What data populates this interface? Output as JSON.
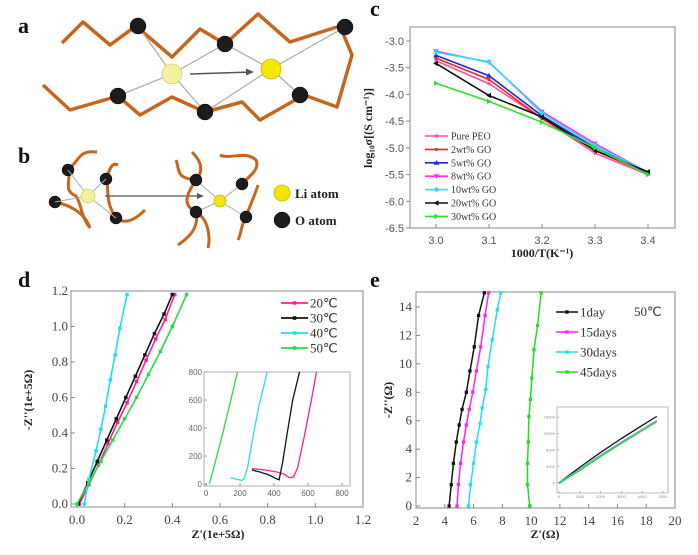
{
  "panels": {
    "a": {
      "label": "a"
    },
    "b": {
      "label": "b",
      "legend": [
        {
          "name": "Li atom",
          "color": "#f5e600"
        },
        {
          "name": "O atom",
          "color": "#1a1a1a"
        }
      ]
    },
    "c": {
      "label": "c"
    },
    "d": {
      "label": "d"
    },
    "e": {
      "label": "e"
    }
  },
  "colors": {
    "chain": "#c8651b",
    "li_faded": "#f4f0a0",
    "li": "#f5e600",
    "oxygen": "#1c1c1c",
    "frame": "#888888"
  },
  "chart_data": [
    {
      "id": "c",
      "type": "line",
      "title": "",
      "xlabel": "1000/T(K⁻¹)",
      "ylabel": "log₁₀σ[(S cm⁻¹)]",
      "xlim": [
        2.95,
        3.45
      ],
      "ylim": [
        -6.5,
        -2.7
      ],
      "xticks": [
        3.0,
        3.1,
        3.2,
        3.3,
        3.4
      ],
      "xtick_labels": [
        "3.0",
        "3.1",
        "3.2",
        "3.3",
        "3.4"
      ],
      "yticks": [
        -3.0,
        -3.5,
        -4.0,
        -4.5,
        -5.0,
        -5.5,
        -6.0,
        -6.5
      ],
      "ytick_labels": [
        "-3.0",
        "-3.5",
        "-4.0",
        "-4.5",
        "-5.0",
        "-5.5",
        "-6.0",
        "-6.5"
      ],
      "legend_position": "lower-left",
      "x": [
        3.0,
        3.1,
        3.2,
        3.3,
        3.4
      ],
      "series": [
        {
          "name": "Pure PEO",
          "color": "#ff4fa3",
          "marker": "square",
          "values": [
            -3.37,
            -3.8,
            -4.45,
            -5.1,
            -5.5
          ]
        },
        {
          "name": "2wt% GO",
          "color": "#ff2020",
          "marker": "circle",
          "values": [
            -3.32,
            -3.72,
            -4.45,
            -5.05,
            -5.48
          ]
        },
        {
          "name": "5wt% GO",
          "color": "#1a2bd9",
          "marker": "triangle-up",
          "values": [
            -3.27,
            -3.65,
            -4.4,
            -5.0,
            -5.47
          ]
        },
        {
          "name": "8wt% GO",
          "color": "#ff30ff",
          "marker": "triangle-down",
          "values": [
            -3.19,
            -3.4,
            -4.32,
            -4.92,
            -5.46
          ]
        },
        {
          "name": "10wt% GO",
          "color": "#20e0ff",
          "marker": "diamond",
          "values": [
            -3.21,
            -3.39,
            -4.35,
            -4.96,
            -5.46
          ]
        },
        {
          "name": "20wt% GO",
          "color": "#111111",
          "marker": "left",
          "values": [
            -3.42,
            -4.02,
            -4.42,
            -5.05,
            -5.45
          ]
        },
        {
          "name": "30wt% GO",
          "color": "#2ee02e",
          "marker": "right",
          "values": [
            -3.79,
            -4.13,
            -4.52,
            -5.0,
            -5.5
          ]
        }
      ]
    },
    {
      "id": "d",
      "type": "line",
      "title": "",
      "xlabel": "Z'(1e+5Ω)",
      "ylabel": "-Z''(1e+5Ω)",
      "xlim": [
        -0.02,
        1.2
      ],
      "ylim": [
        -0.01,
        1.2
      ],
      "xticks": [
        0.0,
        0.2,
        0.4,
        0.6,
        0.8,
        1.0,
        1.2
      ],
      "xtick_labels": [
        "0.0",
        "0.2",
        "0.4",
        "0.6",
        "0.8",
        "1.0",
        "1.2"
      ],
      "yticks": [
        0.0,
        0.2,
        0.4,
        0.6,
        0.8,
        1.0,
        1.2
      ],
      "ytick_labels": [
        "0.0",
        "0.2",
        "0.4",
        "0.6",
        "0.8",
        "1.0",
        "1.2"
      ],
      "legend_position": "top-right",
      "series": [
        {
          "name": "20℃",
          "color": "#ff1f8f",
          "x": [
            0.01,
            0.05,
            0.09,
            0.13,
            0.17,
            0.21,
            0.25,
            0.29,
            0.33,
            0.37,
            0.41
          ],
          "y": [
            0.0,
            0.11,
            0.22,
            0.34,
            0.46,
            0.57,
            0.69,
            0.81,
            0.93,
            1.04,
            1.18
          ]
        },
        {
          "name": "30℃",
          "color": "#111111",
          "x": [
            0.005,
            0.045,
            0.085,
            0.125,
            0.165,
            0.205,
            0.245,
            0.285,
            0.325,
            0.365,
            0.4
          ],
          "y": [
            0.0,
            0.12,
            0.24,
            0.36,
            0.48,
            0.6,
            0.72,
            0.84,
            0.96,
            1.07,
            1.18
          ]
        },
        {
          "name": "40℃",
          "color": "#1fe0f0",
          "x": [
            0.03,
            0.05,
            0.08,
            0.1,
            0.12,
            0.14,
            0.16,
            0.18,
            0.21
          ],
          "y": [
            0.0,
            0.14,
            0.3,
            0.42,
            0.55,
            0.7,
            0.84,
            0.99,
            1.18
          ]
        },
        {
          "name": "50℃",
          "color": "#22e040",
          "x": [
            0.0,
            0.05,
            0.1,
            0.15,
            0.2,
            0.25,
            0.3,
            0.35,
            0.4,
            0.46
          ],
          "y": [
            0.0,
            0.12,
            0.24,
            0.36,
            0.48,
            0.6,
            0.73,
            0.86,
            1.0,
            1.18
          ]
        }
      ],
      "inset": {
        "xlim": [
          0,
          800
        ],
        "ylim": [
          0,
          800
        ],
        "xticks": [
          0,
          200,
          400,
          600,
          800
        ],
        "xtick_labels": [
          "0",
          "200",
          "400",
          "600",
          "800"
        ],
        "yticks": [
          0,
          200,
          400,
          600,
          800
        ],
        "ytick_labels": [
          "0",
          "200",
          "400",
          "600",
          "800"
        ],
        "series": [
          {
            "name": "20℃",
            "color": "#ff1f8f",
            "x": [
              270,
              350,
              420,
              460,
              490,
              515,
              540,
              580,
              620,
              650
            ],
            "y": [
              110,
              100,
              85,
              70,
              45,
              50,
              120,
              350,
              600,
              800
            ]
          },
          {
            "name": "30℃",
            "color": "#111111",
            "x": [
              270,
              320,
              370,
              410,
              430,
              450,
              480,
              510,
              550
            ],
            "y": [
              100,
              85,
              65,
              40,
              30,
              150,
              380,
              600,
              800
            ]
          },
          {
            "name": "40℃",
            "color": "#1fe0f0",
            "x": [
              145,
              180,
              210,
              225,
              245,
              275,
              310,
              360
            ],
            "y": [
              45,
              35,
              25,
              40,
              120,
              330,
              550,
              800
            ]
          },
          {
            "name": "50℃",
            "color": "#22e040",
            "x": [
              20,
              40,
              70,
              100,
              130,
              160,
              185
            ],
            "y": [
              0,
              90,
              230,
              370,
              520,
              670,
              800
            ]
          }
        ]
      }
    },
    {
      "id": "e",
      "type": "line",
      "title": "",
      "annotation": "50℃",
      "xlabel": "Z'(Ω)",
      "ylabel": "-Z''(Ω)",
      "xlim": [
        2,
        20
      ],
      "ylim": [
        0,
        15
      ],
      "xticks": [
        2,
        4,
        6,
        8,
        10,
        12,
        14,
        16,
        18,
        20
      ],
      "xtick_labels": [
        "2",
        "4",
        "6",
        "8",
        "10",
        "12",
        "14",
        "16",
        "18",
        "20"
      ],
      "yticks": [
        0,
        2,
        4,
        6,
        8,
        10,
        12,
        14
      ],
      "ytick_labels": [
        "0",
        "2",
        "4",
        "6",
        "8",
        "10",
        "12",
        "14"
      ],
      "legend_position": "top-right",
      "series": [
        {
          "name": "1day",
          "color": "#111111",
          "x": [
            4.3,
            4.45,
            4.6,
            4.8,
            5.0,
            5.2,
            5.5,
            5.75,
            6.05,
            6.35,
            6.75
          ],
          "y": [
            0,
            1.5,
            3.0,
            4.5,
            5.7,
            6.8,
            8.0,
            9.5,
            11.2,
            13.4,
            15
          ]
        },
        {
          "name": "15days",
          "color": "#ff20ff",
          "x": [
            4.85,
            4.95,
            5.1,
            5.3,
            5.5,
            5.7,
            5.95,
            6.2,
            6.5,
            6.8,
            7.05
          ],
          "y": [
            0,
            1.5,
            3.0,
            4.5,
            5.7,
            6.8,
            8.0,
            9.5,
            11.2,
            13.4,
            15
          ]
        },
        {
          "name": "30days",
          "color": "#1fdff0",
          "x": [
            5.65,
            5.8,
            6.0,
            6.2,
            6.45,
            6.6,
            6.85,
            7.0,
            7.3,
            7.65,
            7.9
          ],
          "y": [
            0,
            1.5,
            3.0,
            4.5,
            5.8,
            6.9,
            8.2,
            9.8,
            11.7,
            13.8,
            15
          ]
        },
        {
          "name": "45days",
          "color": "#22dd22",
          "x": [
            9.9,
            9.75,
            9.75,
            9.8,
            9.85,
            9.95,
            10.05,
            10.2,
            10.45,
            10.7
          ],
          "y": [
            0,
            1.5,
            3.0,
            4.5,
            6.3,
            7.5,
            9.0,
            11.0,
            12.7,
            15
          ]
        }
      ],
      "inset": {
        "xlim": [
          0,
          5000
        ],
        "ylim": [
          -2000,
          18000
        ],
        "xticks": [
          0,
          1000,
          2000,
          3000,
          4000,
          5000
        ],
        "xtick_labels": [
          "0",
          "1000",
          "2000",
          "3000",
          "4000",
          "5000"
        ],
        "yticks": [
          0,
          4000,
          8000,
          12000,
          16000
        ],
        "ytick_labels": [
          "0",
          "4000",
          "8000",
          "12000",
          "16000"
        ],
        "series": [
          {
            "name": "1day",
            "color": "#111111",
            "x": [
              0,
              1000,
              2000,
              3000,
              4000,
              4700
            ],
            "y": [
              0,
              3800,
              7400,
              10800,
              14000,
              16200
            ]
          },
          {
            "name": "15days",
            "color": "#ff20ff",
            "x": [
              0,
              1000,
              2000,
              3000,
              4000,
              4700
            ],
            "y": [
              0,
              3300,
              6700,
              9900,
              13000,
              15200
            ]
          },
          {
            "name": "30days",
            "color": "#1fdff0",
            "x": [
              0,
              1000,
              2000,
              3000,
              4000,
              4700
            ],
            "y": [
              0,
              3200,
              6600,
              9800,
              12900,
              15100
            ]
          },
          {
            "name": "45days",
            "color": "#22dd22",
            "x": [
              0,
              1000,
              2000,
              3000,
              4000,
              4700
            ],
            "y": [
              -200,
              3000,
              6400,
              9600,
              12700,
              14900
            ]
          }
        ]
      }
    }
  ]
}
